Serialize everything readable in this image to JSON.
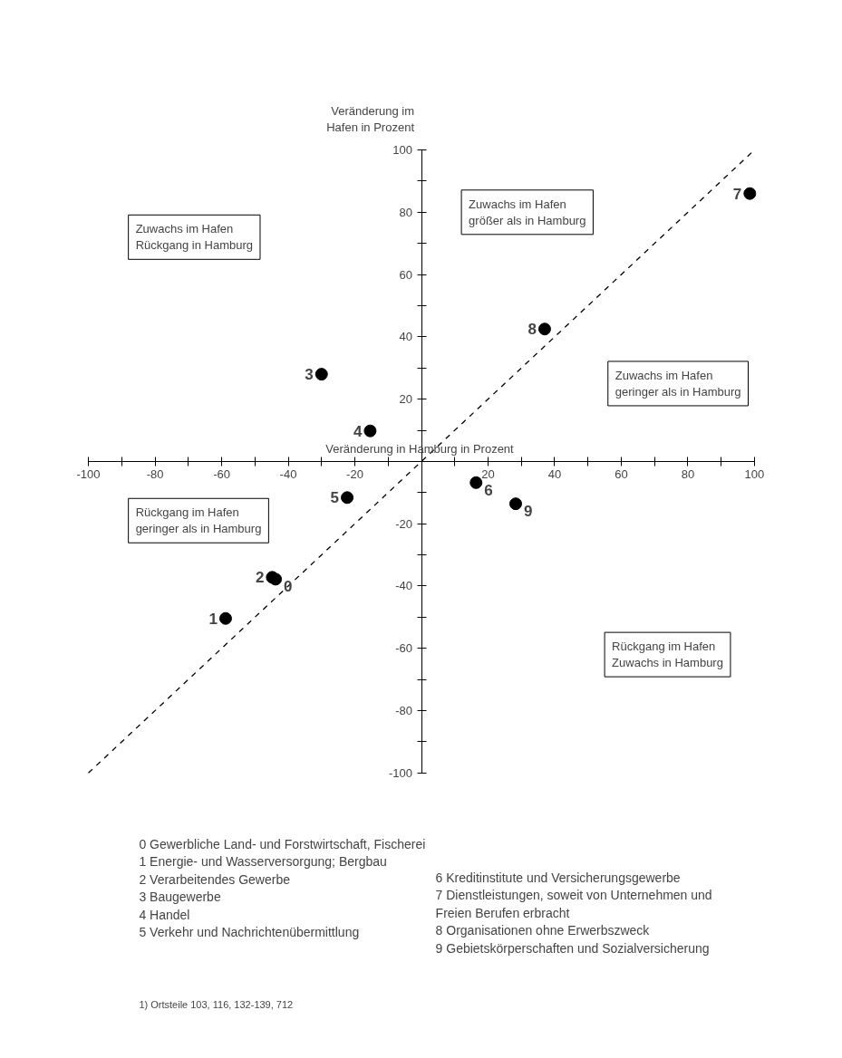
{
  "chart_data": {
    "type": "scatter",
    "xlabel": "Veränderung in Hamburg in Prozent",
    "ylabel": "Veränderung im Hafen in Prozent",
    "xlim": [
      -100,
      100
    ],
    "ylim": [
      -100,
      100
    ],
    "xticks": [
      -100,
      {
        "value": -90,
        "label": null
      },
      -80,
      {
        "value": -70,
        "label": null
      },
      -60,
      {
        "value": -50,
        "label": null
      },
      -40,
      {
        "value": -30,
        "label": null
      },
      -20,
      {
        "value": -10,
        "label": null
      },
      {
        "value": 10,
        "label": null
      },
      20,
      {
        "value": 30,
        "label": null
      },
      40,
      {
        "value": 50,
        "label": null
      },
      60,
      {
        "value": 70,
        "label": null
      },
      80,
      {
        "value": 90,
        "label": null
      },
      100
    ],
    "yticks": [
      -100,
      {
        "value": -90,
        "label": null
      },
      -80,
      {
        "value": -70,
        "label": null
      },
      -60,
      {
        "value": -50,
        "label": null
      },
      -40,
      {
        "value": -30,
        "label": null
      },
      -20,
      {
        "value": -10,
        "label": null
      },
      {
        "value": 10,
        "label": null
      },
      20,
      {
        "value": 30,
        "label": null
      },
      40,
      {
        "value": 50,
        "label": null
      },
      60,
      {
        "value": 70,
        "label": null
      },
      80,
      {
        "value": 90,
        "label": null
      },
      100
    ],
    "series": [
      {
        "type": "line",
        "color": "#000000",
        "line_style": "dashed",
        "x": [
          -100,
          100
        ],
        "values": [
          -100,
          100
        ]
      },
      {
        "marker": "circle",
        "color": "#000000",
        "x": [
          -43.8,
          -58.8,
          -44.8,
          -30,
          -15.4,
          -22.3,
          16.4,
          98.6,
          37,
          28.3
        ],
        "values": [
          -37.8,
          -50.4,
          -37.2,
          28,
          9.8,
          -11.6,
          -6.8,
          86,
          42.5,
          -13.6
        ]
      }
    ],
    "annotations": [
      {
        "text": "0",
        "x": -43.8,
        "y": -37.8
      },
      {
        "text": "1",
        "x": -58.8,
        "y": -50.4
      },
      {
        "text": "2",
        "x": -44.8,
        "y": -37.2
      },
      {
        "text": "3",
        "x": -30,
        "y": 28
      },
      {
        "text": "4",
        "x": -15.4,
        "y": 9.8
      },
      {
        "text": "5",
        "x": -22.3,
        "y": -11.6
      },
      {
        "text": "6",
        "x": 16.4,
        "y": -6.8
      },
      {
        "text": "7",
        "x": 98.6,
        "y": 86
      },
      {
        "text": "8",
        "x": 37,
        "y": 42.5
      },
      {
        "text": "9",
        "x": 28.3,
        "y": -13.6
      },
      "Zuwachs im Hafen\nRückgang in Hamburg",
      "Zuwachs im Hafen\ngrößer als in Hamburg",
      "Zuwachs im Hafen\ngeringer als in Hamburg",
      "Rückgang im Hafen\ngeringer als in Hamburg",
      "Rückgang im Hafen\nZuwachs in Hamburg",
      "0  Gewerbliche Land- und Forstwirtschaft, Fischerei",
      "1  Energie- und Wasserversorgung; Bergbau",
      "2  Verarbeitendes Gewerbe",
      "3  Baugewerbe",
      "4  Handel",
      "5  Verkehr und Nachrichtenübermittlung",
      "6  Kreditinstitute und Versicherungsgewerbe",
      "7  Dienstleistungen, soweit von Unternehmen und Freien Berufen erbracht",
      "8  Organisationen ohne Erwerbszweck",
      "9  Gebietskörperschaften und Sozialversicherung",
      "1) Ortsteile 103, 116, 132-139, 712"
    ]
  }
}
